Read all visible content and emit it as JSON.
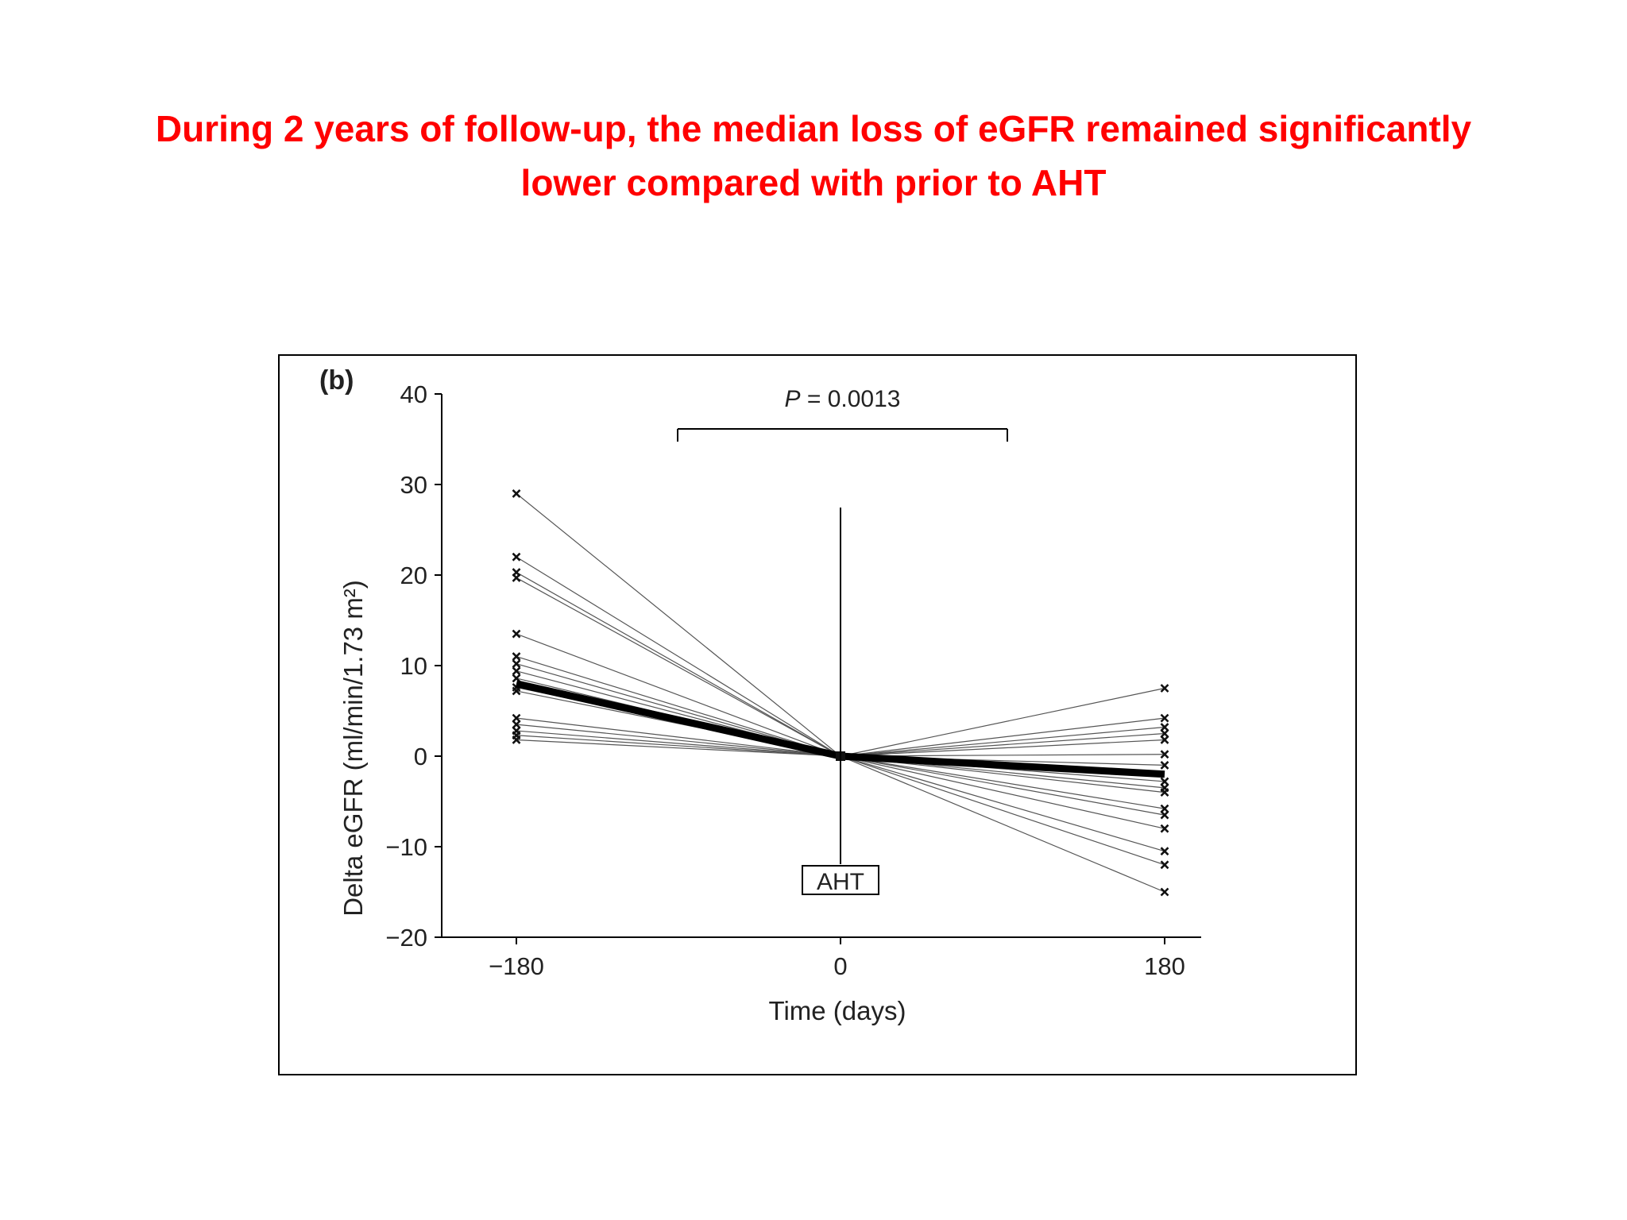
{
  "slide": {
    "title_line1": "During 2 years of follow-up, the median loss of eGFR remained significantly",
    "title_line2": "lower compared with prior to AHT",
    "title_color": "#ff0000"
  },
  "chart_data": {
    "type": "line",
    "panel_label": "(b)",
    "xlabel": "Time (days)",
    "ylabel": "Delta eGFR (ml/min/1.73 m²)",
    "x": [
      -180,
      0,
      180
    ],
    "xticks": [
      "−180",
      "0",
      "180"
    ],
    "yticks": [
      "40",
      "30",
      "20",
      "10",
      "0",
      "−10",
      "−20"
    ],
    "ylim": [
      -20,
      40
    ],
    "xlim": [
      -220,
      200
    ],
    "grid": false,
    "annotation_intervention": "AHT",
    "annotation_pvalue_prefix": "P",
    "annotation_pvalue_value": " = 0.0013",
    "median_series": {
      "values": [
        8,
        0,
        -2
      ]
    },
    "series": [
      {
        "values": [
          29,
          0,
          -15
        ]
      },
      {
        "values": [
          22,
          0,
          -12
        ]
      },
      {
        "values": [
          20.3,
          0,
          -10.5
        ]
      },
      {
        "values": [
          19.7,
          0,
          -8
        ]
      },
      {
        "values": [
          13.5,
          0,
          -6.5
        ]
      },
      {
        "values": [
          11,
          0,
          -5.8
        ]
      },
      {
        "values": [
          10.2,
          0,
          -4
        ]
      },
      {
        "values": [
          9.4,
          0,
          -3.5
        ]
      },
      {
        "values": [
          8.6,
          0,
          -2.8
        ]
      },
      {
        "values": [
          7.6,
          0,
          -1
        ]
      },
      {
        "values": [
          7.2,
          0,
          0.2
        ]
      },
      {
        "values": [
          4.2,
          0,
          1.8
        ]
      },
      {
        "values": [
          3.5,
          0,
          2.5
        ]
      },
      {
        "values": [
          2.8,
          0,
          3.2
        ]
      },
      {
        "values": [
          2.3,
          0,
          4.2
        ]
      },
      {
        "values": [
          1.8,
          0,
          7.5
        ]
      }
    ]
  }
}
